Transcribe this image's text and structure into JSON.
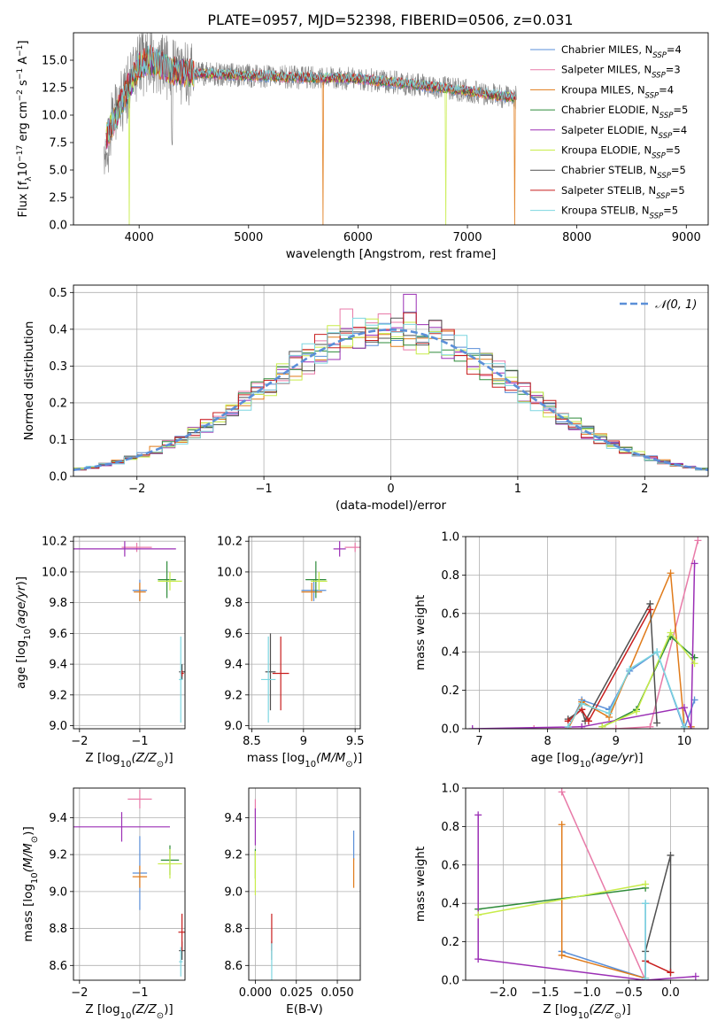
{
  "figure": {
    "title": "PLATE=0957, MJD=52398, FIBERID=0506, z=0.031"
  },
  "colors": {
    "Chabrier MILES": "#5a8fd8",
    "Salpeter MILES": "#e87aa8",
    "Kroupa MILES": "#e07b1a",
    "Chabrier ELODIE": "#2e8b3a",
    "Salpeter ELODIE": "#9b2fb5",
    "Kroupa ELODIE": "#c8ec4a",
    "Chabrier STELIB": "#505050",
    "Salpeter STELIB": "#c81e1e",
    "Kroupa STELIB": "#7dd6e0",
    "data": "#808080",
    "gaussian": "#5b8fd8"
  },
  "chart_data": [
    {
      "id": "spectrum",
      "type": "line",
      "title": "PLATE=0957, MJD=52398, FIBERID=0506, z=0.031",
      "xlabel": "wavelength [Angstrom, rest frame]",
      "ylabel_parts": [
        "Flux [f",
        "λ",
        "10",
        "−17",
        " erg cm",
        "−2",
        " s",
        "−1",
        " A",
        "−1",
        "]"
      ],
      "xlim": [
        3400,
        9200
      ],
      "ylim": [
        0,
        17.5
      ],
      "xticks": [
        4000,
        5000,
        6000,
        7000,
        8000,
        9000
      ],
      "yticks": [
        0.0,
        2.5,
        5.0,
        7.5,
        10.0,
        12.5,
        15.0
      ],
      "legend_position": "upper right",
      "legend": [
        {
          "name": "Chabrier MILES",
          "n": "4"
        },
        {
          "name": "Salpeter MILES",
          "n": "3"
        },
        {
          "name": "Kroupa MILES",
          "n": "4"
        },
        {
          "name": "Chabrier ELODIE",
          "n": "5"
        },
        {
          "name": "Salpeter ELODIE",
          "n": "4"
        },
        {
          "name": "Kroupa ELODIE",
          "n": "5"
        },
        {
          "name": "Chabrier STELIB",
          "n": "5"
        },
        {
          "name": "Salpeter STELIB",
          "n": "5"
        },
        {
          "name": "Kroupa STELIB",
          "n": "5"
        }
      ],
      "legend_sub": "SSP",
      "data_range": [
        3680,
        7450
      ],
      "model_envelope": {
        "x": [
          3700,
          3900,
          4000,
          4100,
          4300,
          4500,
          5000,
          5500,
          6000,
          6500,
          7000,
          7400
        ],
        "y": [
          8.0,
          12.5,
          14.5,
          15.0,
          14.0,
          13.8,
          13.6,
          13.4,
          13.3,
          12.8,
          12.2,
          11.6
        ]
      },
      "model_dropouts": [
        {
          "series": "Kroupa MILES",
          "x": 5680
        },
        {
          "series": "Kroupa MILES",
          "x": 7430
        },
        {
          "series": "Kroupa ELODIE",
          "x": 3910
        },
        {
          "series": "Kroupa ELODIE",
          "x": 6800
        }
      ]
    },
    {
      "id": "residuals",
      "type": "histogram",
      "xlabel": "(data-model)/error",
      "ylabel": "Normed distribution",
      "xlim": [
        -2.5,
        2.5
      ],
      "ylim": [
        0,
        0.52
      ],
      "xticks": [
        -2,
        -1,
        0,
        1,
        2
      ],
      "yticks": [
        0.0,
        0.1,
        0.2,
        0.3,
        0.4,
        0.5
      ],
      "bin_width": 0.1,
      "reference_curve": {
        "name": "N(0,1)",
        "mu": 0,
        "sigma": 1
      },
      "legend_position": "upper right",
      "legend_label": "𝒩(0, 1)"
    },
    {
      "id": "age_vs_Z",
      "type": "errorbar",
      "xlabel": "Z [log10(Z/Z⊙)]",
      "ylabel": "age  [log10(age/yr)]",
      "xlim": [
        -2.1,
        -0.25
      ],
      "ylim": [
        8.98,
        10.23
      ],
      "xticks": [
        -2,
        -1
      ],
      "yticks": [
        9.0,
        9.2,
        9.4,
        9.6,
        9.8,
        10.0,
        10.2
      ],
      "points": [
        {
          "series": "Chabrier MILES",
          "x": -1.0,
          "xerr": 0.12,
          "y": 9.88,
          "yerr": 0.07
        },
        {
          "series": "Salpeter MILES",
          "x": -1.05,
          "xerr": 0.25,
          "y": 10.16,
          "yerr": 0.03
        },
        {
          "series": "Kroupa MILES",
          "x": -1.0,
          "xerr": 0.1,
          "y": 9.87,
          "yerr": 0.06
        },
        {
          "series": "Chabrier ELODIE",
          "x": -0.55,
          "xerr": 0.15,
          "y": 9.95,
          "yerr": 0.12
        },
        {
          "series": "Salpeter ELODIE",
          "x": -1.25,
          "xerr": 0.85,
          "y": 10.15,
          "yerr": 0.05
        },
        {
          "series": "Kroupa ELODIE",
          "x": -0.5,
          "xerr": 0.2,
          "y": 9.94,
          "yerr": 0.06
        },
        {
          "series": "Chabrier STELIB",
          "x": -0.3,
          "xerr": 0.05,
          "y": 9.35,
          "yerr": 0.05
        },
        {
          "series": "Salpeter STELIB",
          "x": -0.3,
          "xerr": 0.03,
          "y": 9.34,
          "yerr": 0.02
        },
        {
          "series": "Kroupa STELIB",
          "x": -0.32,
          "xerr": 0.03,
          "y": 9.3,
          "yerr": 0.28
        }
      ]
    },
    {
      "id": "age_vs_mass",
      "type": "errorbar",
      "xlabel": "mass [log10(M/M⊙)]",
      "ylabel": "",
      "xlim": [
        8.47,
        9.55
      ],
      "ylim": [
        8.98,
        10.23
      ],
      "xticks": [
        8.5,
        9.0,
        9.5
      ],
      "yticks": [
        9.0,
        9.2,
        9.4,
        9.6,
        9.8,
        10.0,
        10.2
      ],
      "points": [
        {
          "series": "Chabrier MILES",
          "x": 9.1,
          "xerr": 0.12,
          "y": 9.88,
          "yerr": 0.07
        },
        {
          "series": "Salpeter MILES",
          "x": 9.5,
          "xerr": 0.1,
          "y": 10.16,
          "yerr": 0.03
        },
        {
          "series": "Kroupa MILES",
          "x": 9.08,
          "xerr": 0.1,
          "y": 9.87,
          "yerr": 0.06
        },
        {
          "series": "Chabrier ELODIE",
          "x": 9.12,
          "xerr": 0.1,
          "y": 9.95,
          "yerr": 0.12
        },
        {
          "series": "Salpeter ELODIE",
          "x": 9.35,
          "xerr": 0.06,
          "y": 10.15,
          "yerr": 0.05
        },
        {
          "series": "Kroupa ELODIE",
          "x": 9.15,
          "xerr": 0.08,
          "y": 9.94,
          "yerr": 0.06
        },
        {
          "series": "Chabrier STELIB",
          "x": 8.68,
          "xerr": 0.05,
          "y": 9.35,
          "yerr": 0.25
        },
        {
          "series": "Salpeter STELIB",
          "x": 8.78,
          "xerr": 0.08,
          "y": 9.34,
          "yerr": 0.24
        },
        {
          "series": "Kroupa STELIB",
          "x": 8.66,
          "xerr": 0.07,
          "y": 9.3,
          "yerr": 0.28
        }
      ]
    },
    {
      "id": "weight_vs_age",
      "type": "line",
      "xlabel": "age  [log10(age/yr)]",
      "ylabel": "mass weight",
      "xlim": [
        6.8,
        10.35
      ],
      "ylim": [
        0,
        1.0
      ],
      "xticks": [
        7,
        8,
        9,
        10
      ],
      "yticks": [
        0.0,
        0.2,
        0.4,
        0.6,
        0.8,
        1.0
      ],
      "series": [
        {
          "name": "Chabrier MILES",
          "x": [
            8.3,
            8.5,
            8.9,
            9.2,
            9.6,
            10.0,
            10.15
          ],
          "y": [
            0.0,
            0.15,
            0.1,
            0.3,
            0.4,
            0.0,
            0.15
          ]
        },
        {
          "name": "Salpeter MILES",
          "x": [
            7.8,
            9.0,
            9.5,
            10.2
          ],
          "y": [
            0.0,
            0.0,
            0.01,
            0.98
          ]
        },
        {
          "name": "Kroupa MILES",
          "x": [
            8.3,
            8.5,
            8.9,
            9.8,
            10.0,
            10.1
          ],
          "y": [
            0.0,
            0.14,
            0.06,
            0.81,
            0.01,
            0.01
          ]
        },
        {
          "name": "Chabrier ELODIE",
          "x": [
            8.8,
            9.3,
            9.8,
            10.15
          ],
          "y": [
            0.01,
            0.1,
            0.48,
            0.37
          ]
        },
        {
          "name": "Salpeter ELODIE",
          "x": [
            6.9,
            8.5,
            10.0,
            10.1,
            10.15
          ],
          "y": [
            0.0,
            0.01,
            0.11,
            0.0,
            0.86
          ]
        },
        {
          "name": "Kroupa ELODIE",
          "x": [
            8.8,
            9.3,
            9.8,
            10.15
          ],
          "y": [
            0.01,
            0.09,
            0.5,
            0.34
          ]
        },
        {
          "name": "Chabrier STELIB",
          "x": [
            8.3,
            8.5,
            8.55,
            9.5,
            9.6
          ],
          "y": [
            0.05,
            0.1,
            0.04,
            0.65,
            0.03
          ]
        },
        {
          "name": "Salpeter STELIB",
          "x": [
            8.3,
            8.5,
            8.6,
            9.5
          ],
          "y": [
            0.04,
            0.1,
            0.04,
            0.62
          ]
        },
        {
          "name": "Kroupa STELIB",
          "x": [
            8.3,
            8.5,
            8.9,
            9.2,
            9.6,
            10.0
          ],
          "y": [
            0.01,
            0.13,
            0.08,
            0.31,
            0.4,
            0.01
          ]
        }
      ]
    },
    {
      "id": "mass_vs_Z",
      "type": "errorbar",
      "xlabel": "Z [log10(Z/Z⊙)]",
      "ylabel": "mass [log10(M/M⊙)]",
      "xlim": [
        -2.1,
        -0.25
      ],
      "ylim": [
        8.52,
        9.56
      ],
      "xticks": [
        -2,
        -1
      ],
      "yticks": [
        8.6,
        8.8,
        9.0,
        9.2,
        9.4
      ],
      "points": [
        {
          "series": "Chabrier MILES",
          "x": -1.0,
          "xerr": 0.12,
          "y": 9.1,
          "yerr": 0.2
        },
        {
          "series": "Salpeter MILES",
          "x": -1.0,
          "xerr": 0.2,
          "y": 9.5,
          "yerr": 0.05
        },
        {
          "series": "Kroupa MILES",
          "x": -1.0,
          "xerr": 0.12,
          "y": 9.08,
          "yerr": 0.06
        },
        {
          "series": "Chabrier ELODIE",
          "x": -0.5,
          "xerr": 0.15,
          "y": 9.17,
          "yerr": 0.08
        },
        {
          "series": "Salpeter ELODIE",
          "x": -1.3,
          "xerr": 0.8,
          "y": 9.35,
          "yerr": 0.08
        },
        {
          "series": "Kroupa ELODIE",
          "x": -0.5,
          "xerr": 0.2,
          "y": 9.15,
          "yerr": 0.08
        },
        {
          "series": "Chabrier STELIB",
          "x": -0.3,
          "xerr": 0.05,
          "y": 8.68,
          "yerr": 0.05
        },
        {
          "series": "Salpeter STELIB",
          "x": -0.3,
          "xerr": 0.06,
          "y": 8.78,
          "yerr": 0.1
        },
        {
          "series": "Kroupa STELIB",
          "x": -0.32,
          "xerr": 0.03,
          "y": 8.62,
          "yerr": 0.08
        }
      ]
    },
    {
      "id": "mass_vs_EBV",
      "type": "errorbar",
      "xlabel": "E(B-V)",
      "ylabel": "",
      "xlim": [
        -0.004,
        0.064
      ],
      "ylim": [
        8.52,
        9.56
      ],
      "xticks": [
        0.0,
        0.025,
        0.05
      ],
      "xtick_labels": [
        "0.000",
        "0.025",
        "0.050"
      ],
      "yticks": [
        8.6,
        8.8,
        9.0,
        9.2,
        9.4
      ],
      "points": [
        {
          "series": "Chabrier MILES",
          "x": 0.06,
          "xerr": 0.0,
          "y": 9.25,
          "yerr": 0.08
        },
        {
          "series": "Salpeter MILES",
          "x": 0.0,
          "xerr": 0.0,
          "y": 9.45,
          "yerr": 0.05
        },
        {
          "series": "Kroupa MILES",
          "x": 0.06,
          "xerr": 0.0,
          "y": 9.1,
          "yerr": 0.08
        },
        {
          "series": "Chabrier ELODIE",
          "x": 0.0,
          "xerr": 0.0,
          "y": 9.15,
          "yerr": 0.08
        },
        {
          "series": "Salpeter ELODIE",
          "x": 0.0,
          "xerr": 0.0,
          "y": 9.35,
          "yerr": 0.1
        },
        {
          "series": "Kroupa ELODIE",
          "x": 0.0,
          "xerr": 0.0,
          "y": 9.1,
          "yerr": 0.12
        },
        {
          "series": "Chabrier STELIB",
          "x": 0.01,
          "xerr": 0.0,
          "y": 8.68,
          "yerr": 0.05
        },
        {
          "series": "Salpeter STELIB",
          "x": 0.01,
          "xerr": 0.0,
          "y": 8.78,
          "yerr": 0.1
        },
        {
          "series": "Kroupa STELIB",
          "x": 0.01,
          "xerr": 0.0,
          "y": 8.62,
          "yerr": 0.1
        }
      ]
    },
    {
      "id": "weight_vs_Z",
      "type": "line",
      "xlabel": "Z [log10(Z/Z⊙)]",
      "ylabel": "mass weight",
      "xlim": [
        -2.45,
        0.45
      ],
      "ylim": [
        0,
        1.0
      ],
      "xticks": [
        -2.0,
        -1.5,
        -1.0,
        -0.5,
        0.0
      ],
      "xtick_labels": [
        "−2.0",
        "−1.5",
        "−1.0",
        "−0.5",
        "0.0"
      ],
      "yticks": [
        0.0,
        0.2,
        0.4,
        0.6,
        0.8,
        1.0
      ],
      "series": [
        {
          "name": "Chabrier MILES",
          "x": [
            -1.3,
            -0.3,
            -0.3
          ],
          "y": [
            0.15,
            0.01,
            0.4
          ]
        },
        {
          "name": "Salpeter MILES",
          "x": [
            -1.3,
            -0.3
          ],
          "y": [
            0.98,
            0.0
          ]
        },
        {
          "name": "Kroupa MILES",
          "x": [
            -1.3,
            -1.3,
            -0.3
          ],
          "y": [
            0.81,
            0.13,
            0.01
          ]
        },
        {
          "name": "Chabrier ELODIE",
          "x": [
            -2.3,
            -0.3
          ],
          "y": [
            0.37,
            0.48
          ]
        },
        {
          "name": "Salpeter ELODIE",
          "x": [
            -2.3,
            -2.3,
            -0.3,
            0.3
          ],
          "y": [
            0.86,
            0.11,
            0.0,
            0.02
          ]
        },
        {
          "name": "Kroupa ELODIE",
          "x": [
            -2.3,
            -0.3
          ],
          "y": [
            0.34,
            0.5
          ]
        },
        {
          "name": "Chabrier STELIB",
          "x": [
            -0.3,
            -0.3,
            0.0,
            0.0
          ],
          "y": [
            0.0,
            0.15,
            0.65,
            0.04
          ]
        },
        {
          "name": "Salpeter STELIB",
          "x": [
            -0.3,
            0.0
          ],
          "y": [
            0.1,
            0.04
          ]
        },
        {
          "name": "Kroupa STELIB",
          "x": [
            -0.3,
            -0.3
          ],
          "y": [
            0.01,
            0.4
          ]
        }
      ]
    }
  ]
}
